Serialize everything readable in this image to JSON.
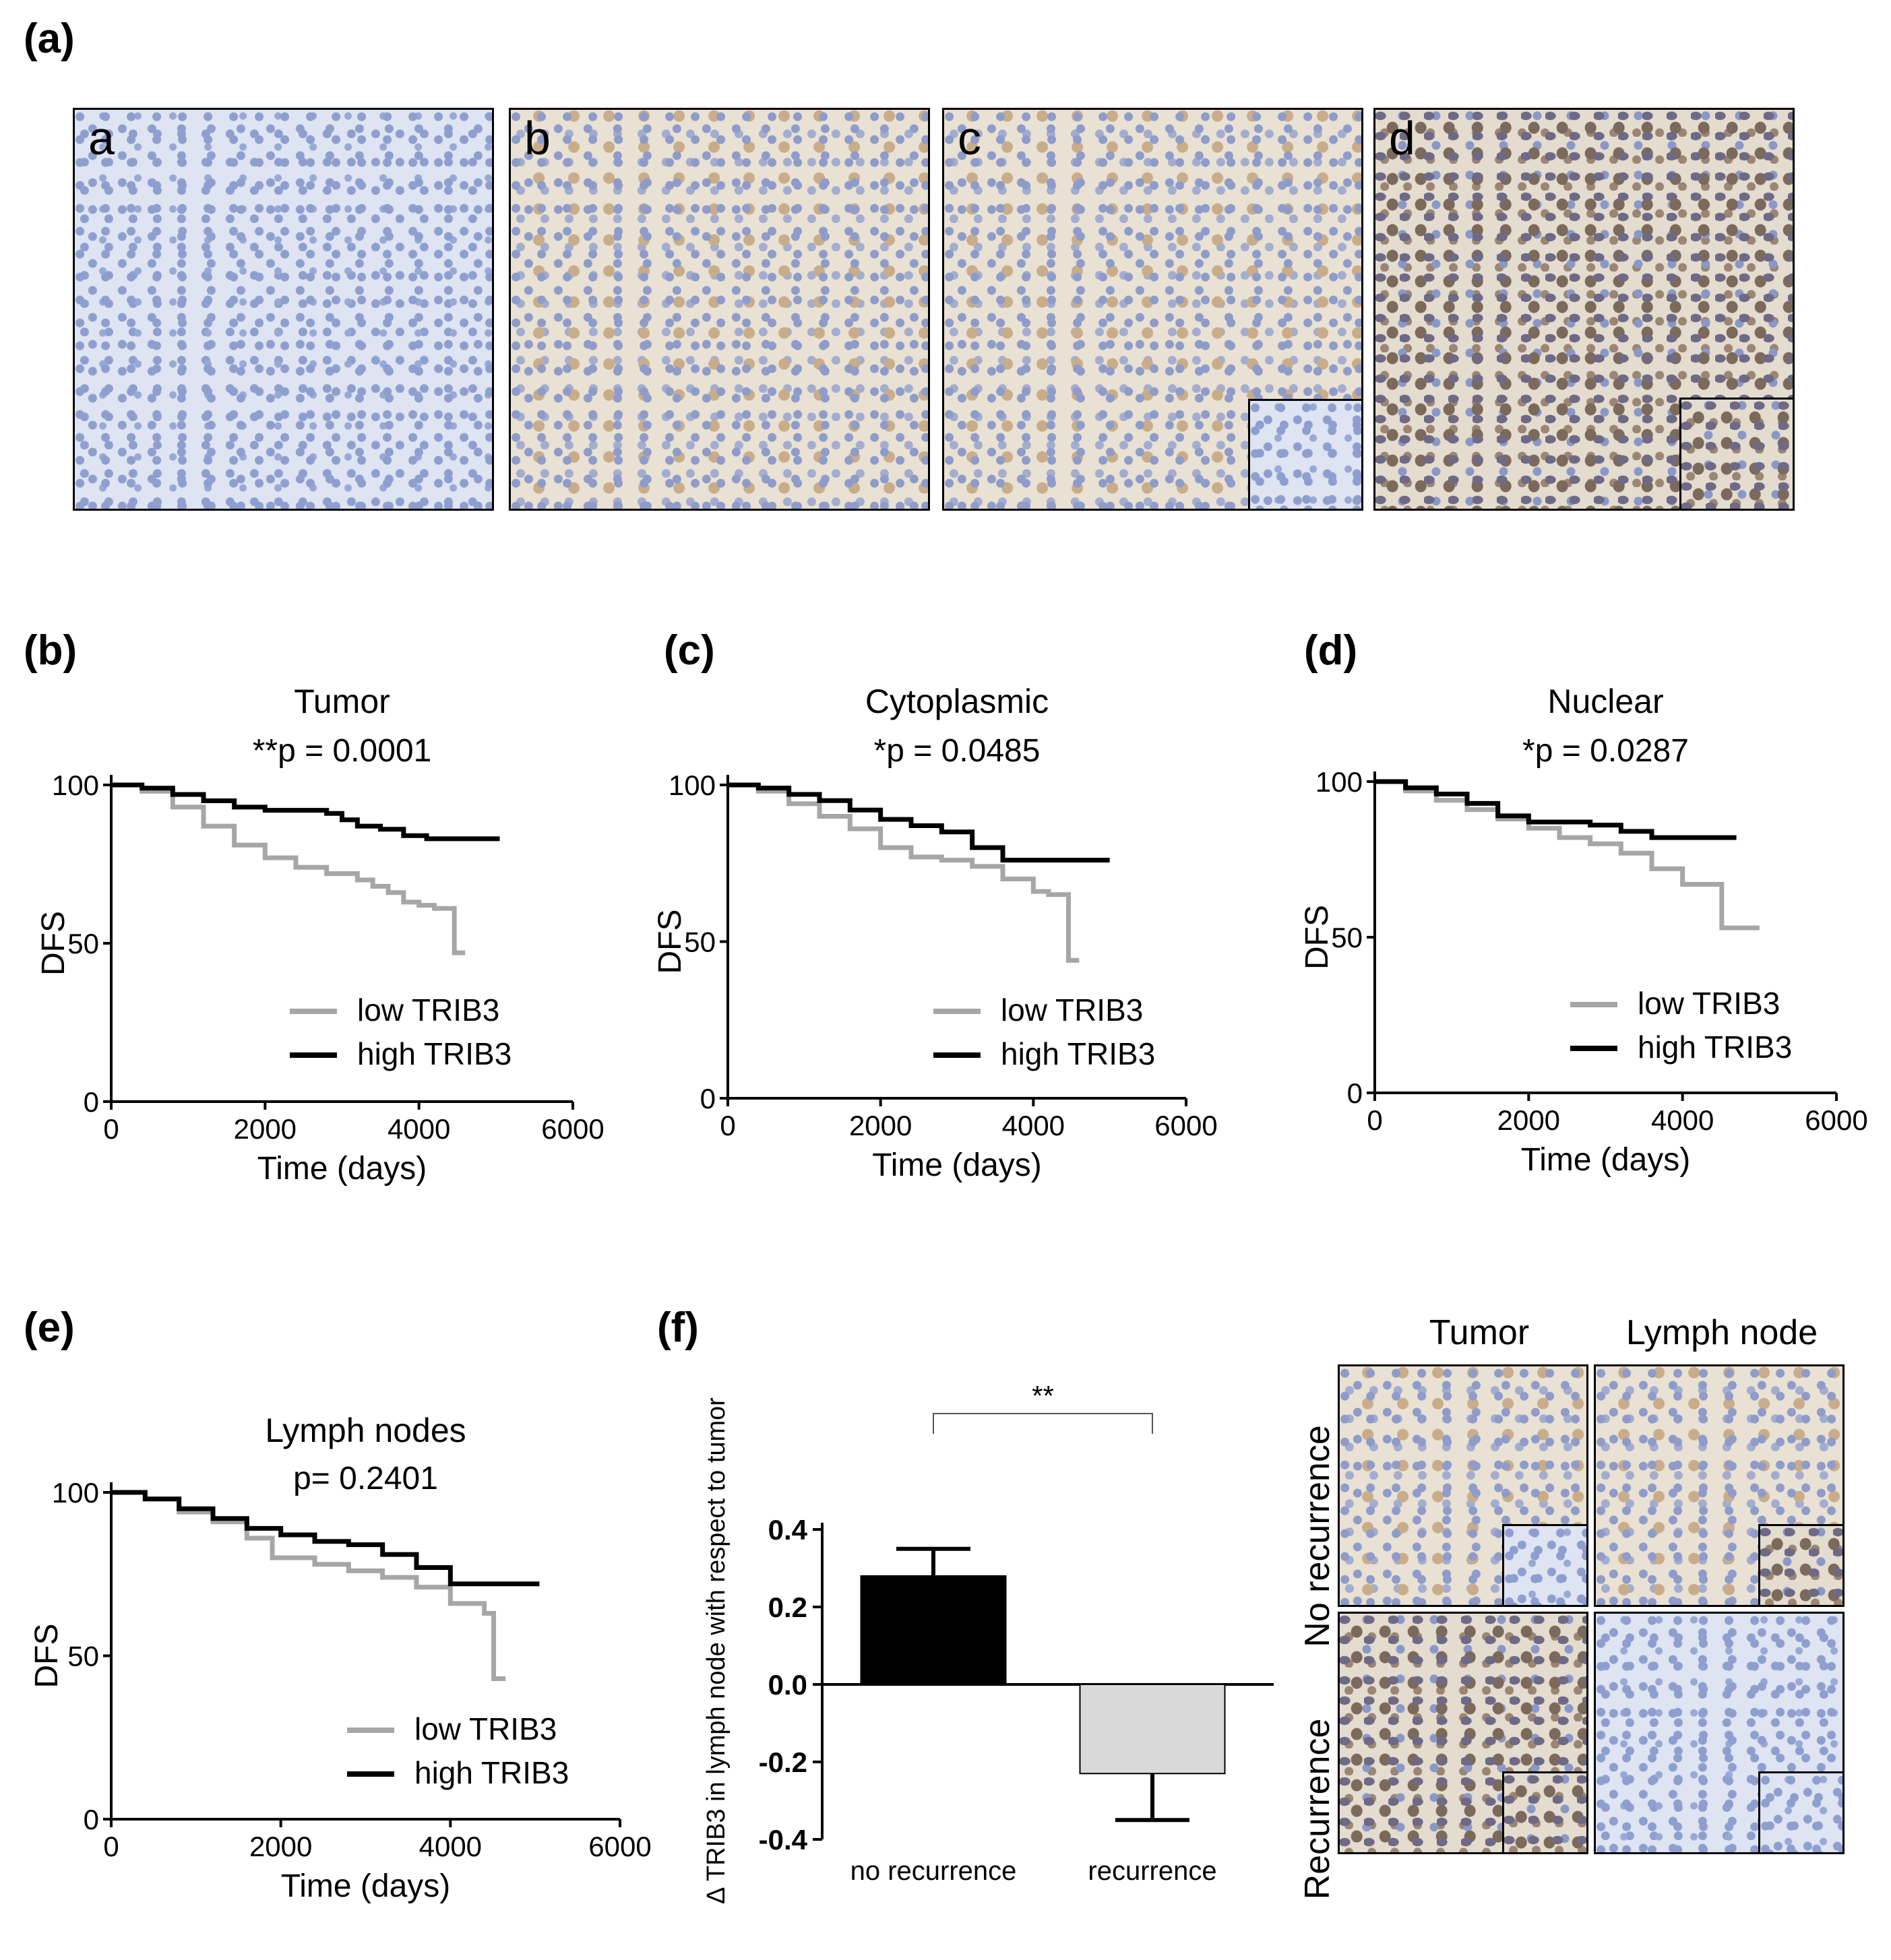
{
  "panel_labels": {
    "a": "(a)",
    "b": "(b)",
    "c": "(c)",
    "d": "(d)",
    "e": "(e)",
    "f": "(f)"
  },
  "micrographs": {
    "letters": [
      "a",
      "b",
      "c",
      "d"
    ],
    "f_columns": [
      "Tumor",
      "Lymph node"
    ],
    "f_rows": [
      "No recurrence",
      "Recurrence"
    ]
  },
  "legend": {
    "b": [
      "low TRIB3",
      "high TRIB3"
    ],
    "c": [
      "low  TRIB3",
      "high TRIB3"
    ],
    "d": [
      "low  TRIB3",
      "high TRIB3"
    ],
    "e": [
      "low TRIB3",
      "high TRIB3"
    ]
  },
  "colors": {
    "low": "#a6a6a6",
    "high": "#000000",
    "bar_low": "#d9d9d9",
    "bar_high": "#000000"
  },
  "chart_data": [
    {
      "id": "b",
      "type": "line",
      "title": "Tumor",
      "subtitle": "**p  = 0.0001",
      "xlabel": "Time (days)",
      "ylabel": "DFS",
      "xlim": [
        0,
        6000
      ],
      "ylim": [
        0,
        100
      ],
      "xticks": [
        "0",
        "2000",
        "4000",
        "6000"
      ],
      "yticks": [
        "0",
        "50",
        "100"
      ],
      "series": [
        {
          "name": "low TRIB3",
          "x": [
            0,
            400,
            800,
            1200,
            1600,
            2000,
            2400,
            2800,
            3200,
            3400,
            3600,
            3800,
            4000,
            4200,
            4450,
            4460,
            4600
          ],
          "y": [
            100,
            98,
            93,
            87,
            81,
            77,
            74,
            72,
            70,
            68,
            66,
            63,
            62,
            61,
            61,
            47,
            47
          ]
        },
        {
          "name": "high TRIB3",
          "x": [
            0,
            400,
            800,
            1200,
            1600,
            2000,
            2400,
            2800,
            3000,
            3200,
            3500,
            3800,
            4100,
            4500,
            5050
          ],
          "y": [
            100,
            99,
            97,
            95,
            93,
            92,
            92,
            91,
            89,
            87,
            86,
            84,
            83,
            83,
            83
          ]
        }
      ]
    },
    {
      "id": "c",
      "type": "line",
      "title": "Cytoplasmic",
      "subtitle": "*p  = 0.0485",
      "xlabel": "Time  (days)",
      "ylabel": "DFS",
      "xlim": [
        0,
        6000
      ],
      "ylim": [
        0,
        100
      ],
      "xticks": [
        "0",
        "2000",
        "4000",
        "6000"
      ],
      "yticks": [
        "0",
        "50",
        "100"
      ],
      "series": [
        {
          "name": "low  TRIB3",
          "x": [
            0,
            400,
            800,
            1200,
            1600,
            2000,
            2400,
            2800,
            3200,
            3600,
            4000,
            4200,
            4450,
            4460,
            4600
          ],
          "y": [
            100,
            98,
            94,
            90,
            86,
            80,
            77,
            76,
            74,
            70,
            66,
            65,
            65,
            44,
            44
          ]
        },
        {
          "name": "high TRIB3",
          "x": [
            0,
            400,
            800,
            1200,
            1600,
            2000,
            2400,
            2800,
            3200,
            3600,
            4000,
            4500,
            5000
          ],
          "y": [
            100,
            99,
            97,
            95,
            92,
            89,
            87,
            85,
            80,
            76,
            76,
            76,
            76
          ]
        }
      ]
    },
    {
      "id": "d",
      "type": "line",
      "title": "Nuclear",
      "subtitle": "*p = 0.0287",
      "xlabel": "Time  (days)",
      "ylabel": "DFS",
      "xlim": [
        0,
        6000
      ],
      "ylim": [
        0,
        100
      ],
      "xticks": [
        "0",
        "2000",
        "4000",
        "6000"
      ],
      "yticks": [
        "0",
        "50",
        "100"
      ],
      "series": [
        {
          "name": "low  TRIB3",
          "x": [
            0,
            400,
            800,
            1200,
            1600,
            2000,
            2400,
            2800,
            3200,
            3600,
            4000,
            4500,
            4510,
            5000
          ],
          "y": [
            100,
            97,
            94,
            91,
            88,
            85,
            82,
            80,
            77,
            72,
            67,
            67,
            53,
            53
          ]
        },
        {
          "name": "high TRIB3",
          "x": [
            0,
            400,
            800,
            1200,
            1600,
            2000,
            2400,
            2800,
            3200,
            3600,
            4000,
            4500,
            4700
          ],
          "y": [
            100,
            98,
            96,
            93,
            89,
            87,
            87,
            86,
            84,
            82,
            82,
            82,
            82
          ]
        }
      ]
    },
    {
      "id": "e",
      "type": "line",
      "title": "Lymph nodes",
      "subtitle": "p= 0.2401",
      "xlabel": "Time (days)",
      "ylabel": "DFS",
      "xlim": [
        0,
        6000
      ],
      "ylim": [
        0,
        100
      ],
      "xticks": [
        "0",
        "2000",
        "4000",
        "6000"
      ],
      "yticks": [
        "0",
        "50",
        "100"
      ],
      "series": [
        {
          "name": "low TRIB3",
          "x": [
            0,
            400,
            800,
            1200,
            1600,
            1900,
            2400,
            2800,
            3200,
            3600,
            4000,
            4400,
            4500,
            4510,
            4650
          ],
          "y": [
            100,
            98,
            94,
            91,
            86,
            80,
            78,
            76,
            74,
            71,
            66,
            63,
            63,
            43,
            43
          ]
        },
        {
          "name": "high TRIB3",
          "x": [
            0,
            400,
            800,
            1200,
            1600,
            2000,
            2400,
            2800,
            3200,
            3600,
            4000,
            4500,
            5050
          ],
          "y": [
            100,
            98,
            95,
            92,
            89,
            87,
            85,
            84,
            81,
            77,
            72,
            72,
            72
          ]
        }
      ]
    },
    {
      "id": "f",
      "type": "bar",
      "ylabel": "Δ TRIB3 in lymph node with respect to tumor",
      "categories": [
        "no recurrence",
        "recurrence"
      ],
      "values": [
        0.28,
        -0.23
      ],
      "errors": [
        0.07,
        0.12
      ],
      "ylim": [
        -0.4,
        0.4
      ],
      "yticks": [
        "-0.4",
        "-0.2",
        "0.0",
        "0.2",
        "0.4"
      ],
      "significance": "**"
    }
  ]
}
